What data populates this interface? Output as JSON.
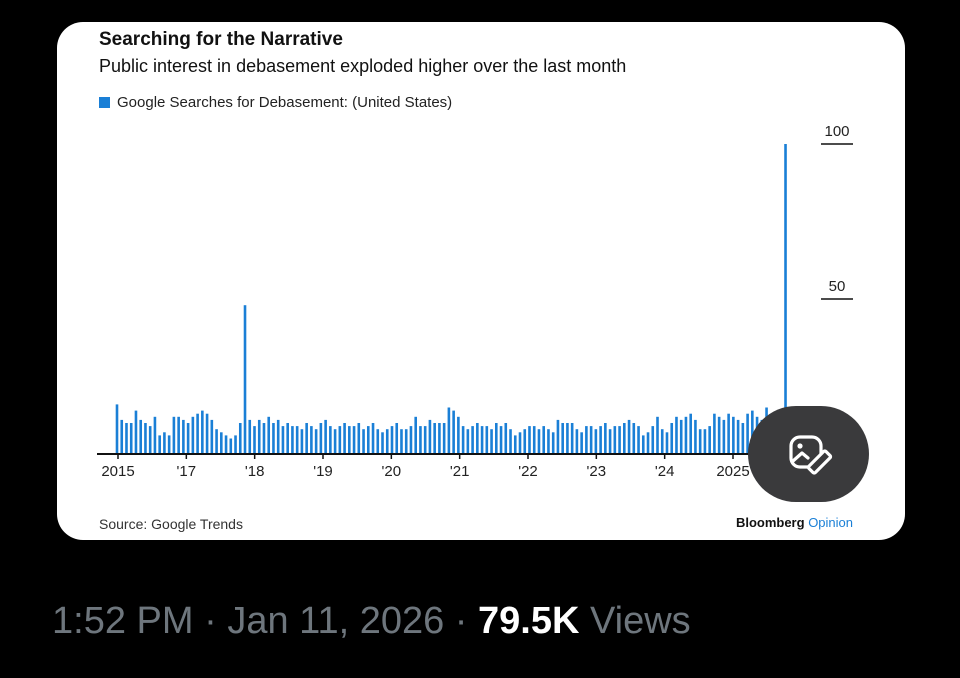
{
  "card": {
    "title": "Searching for the Narrative",
    "subtitle": "Public interest in debasement exploded higher over the last month",
    "source": "Source: Google Trends",
    "brand_main": "Bloomberg",
    "brand_sub": "Opinion"
  },
  "colors": {
    "bar": "#1a7fd6",
    "axis": "#111111",
    "footer_text": "#6e767d",
    "edit_button_bg": "#3a3a3c"
  },
  "edit_button": {
    "icon": "image-edit-icon"
  },
  "footer": {
    "time": "1:52 PM",
    "separator_1": " · ",
    "date": "Jan 11, 2026",
    "separator_2": " · ",
    "views_count": "79.5K",
    "views_label": " Views"
  },
  "chart_data": {
    "type": "bar",
    "legend": [
      "Google Searches for Debasement: (United States)"
    ],
    "x_ticks": [
      "2015",
      "'17",
      "'18",
      "'19",
      "'20",
      "'21",
      "'22",
      "'23",
      "'24",
      "2025"
    ],
    "y_ticks": [
      50,
      100
    ],
    "ylim": [
      0,
      100
    ],
    "y_axis_side": "right",
    "grid": false,
    "series": [
      {
        "name": "Google Searches for Debasement: (United States)",
        "values": [
          16,
          11,
          10,
          10,
          14,
          11,
          10,
          9,
          12,
          6,
          7,
          6,
          12,
          12,
          11,
          10,
          12,
          13,
          14,
          13,
          11,
          8,
          7,
          6,
          5,
          6,
          10,
          48,
          11,
          9,
          11,
          10,
          12,
          10,
          11,
          9,
          10,
          9,
          9,
          8,
          10,
          9,
          8,
          10,
          11,
          9,
          8,
          9,
          10,
          9,
          9,
          10,
          8,
          9,
          10,
          8,
          7,
          8,
          9,
          10,
          8,
          8,
          9,
          12,
          9,
          9,
          11,
          10,
          10,
          10,
          15,
          14,
          12,
          9,
          8,
          9,
          10,
          9,
          9,
          8,
          10,
          9,
          10,
          8,
          6,
          7,
          8,
          9,
          9,
          8,
          9,
          8,
          7,
          11,
          10,
          10,
          10,
          8,
          7,
          9,
          9,
          8,
          9,
          10,
          8,
          9,
          9,
          10,
          11,
          10,
          9,
          6,
          7,
          9,
          12,
          8,
          7,
          10,
          12,
          11,
          12,
          13,
          11,
          8,
          8,
          9,
          13,
          12,
          11,
          13,
          12,
          11,
          10,
          13,
          14,
          12,
          11,
          15,
          13,
          13,
          9,
          100,
          14,
          11
        ]
      }
    ]
  }
}
